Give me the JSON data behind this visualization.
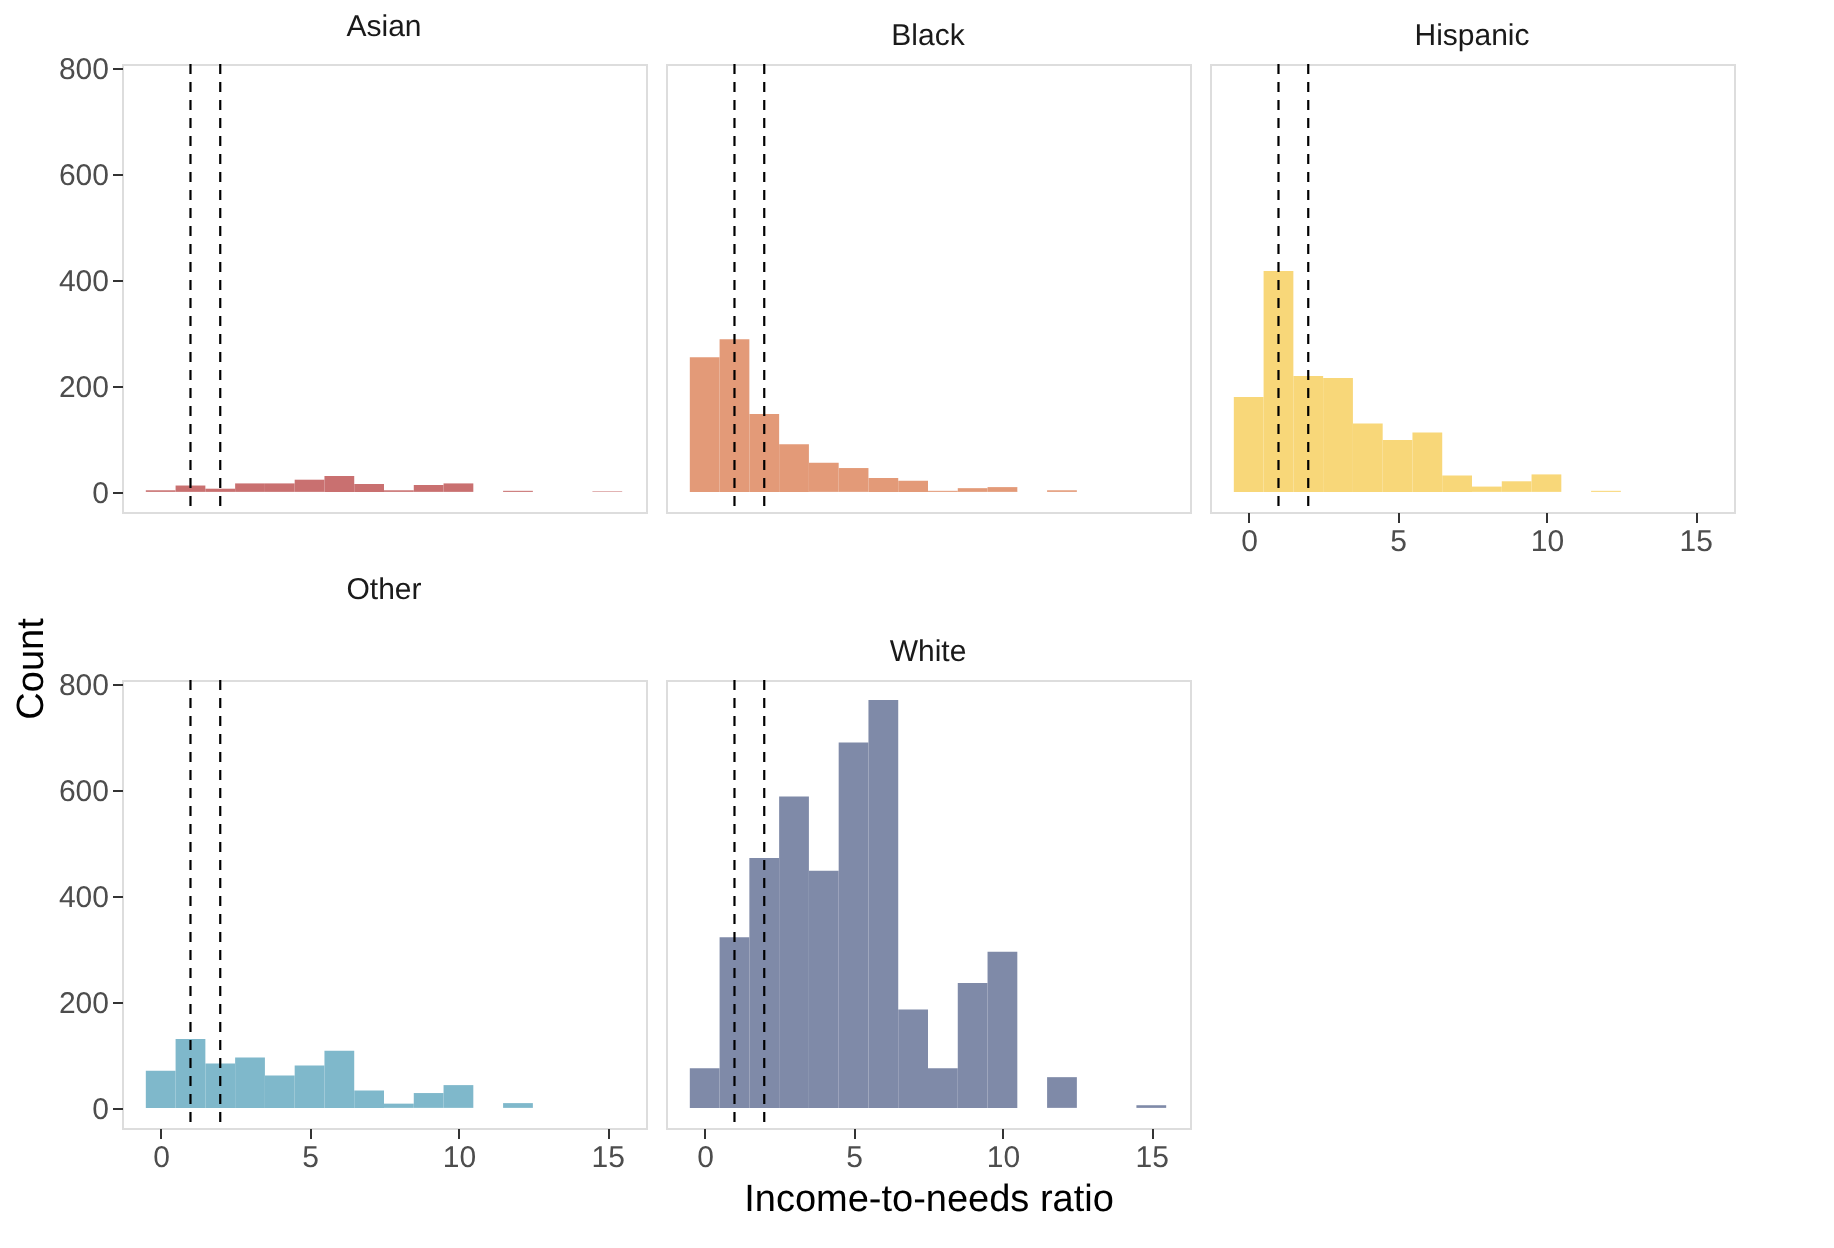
{
  "chart_data": [
    {
      "type": "histogram",
      "title": "Asian",
      "bins": [
        -0.5,
        0.5,
        1.5,
        2.5,
        3.5,
        4.5,
        5.5,
        6.5,
        7.5,
        8.5,
        9.5,
        10.5,
        11.5,
        12.5,
        13.5,
        14.5,
        15.5
      ],
      "values": [
        3,
        12,
        6,
        16,
        16,
        23,
        30,
        15,
        3,
        13,
        16,
        0,
        2,
        0,
        0,
        1
      ],
      "color": "#c97070",
      "xlim": [
        -1.3,
        16.3
      ],
      "xticks": [
        0,
        5,
        10,
        15
      ],
      "ylim": [
        -38,
        808
      ],
      "yticks": [
        0,
        200,
        400,
        600,
        800
      ],
      "ref_lines": [
        {
          "axis": "x",
          "value": 1,
          "color": "#000000",
          "line_style": "dashed"
        },
        {
          "axis": "x",
          "value": 2,
          "color": "#000000",
          "line_style": "dashed"
        }
      ],
      "tick_labels": "y",
      "grid": false
    },
    {
      "type": "histogram",
      "title": "Black",
      "bins": [
        -0.5,
        0.5,
        1.5,
        2.5,
        3.5,
        4.5,
        5.5,
        6.5,
        7.5,
        8.5,
        9.5,
        10.5,
        11.5,
        12.5,
        13.5,
        14.5,
        15.5
      ],
      "values": [
        254,
        288,
        147,
        90,
        55,
        45,
        26,
        21,
        2,
        7,
        9,
        0,
        3,
        0,
        0,
        0
      ],
      "color": "#e39a78",
      "xlim": [
        -1.3,
        16.3
      ],
      "xticks": [
        0,
        5,
        10,
        15
      ],
      "ylim": [
        -38,
        808
      ],
      "yticks": [
        0,
        200,
        400,
        600,
        800
      ],
      "ref_lines": [
        {
          "axis": "x",
          "value": 1,
          "color": "#000000",
          "line_style": "dashed"
        },
        {
          "axis": "x",
          "value": 2,
          "color": "#000000",
          "line_style": "dashed"
        }
      ],
      "tick_labels": false,
      "grid": false
    },
    {
      "type": "histogram",
      "title": "Hispanic",
      "bins": [
        -0.5,
        0.5,
        1.5,
        2.5,
        3.5,
        4.5,
        5.5,
        6.5,
        7.5,
        8.5,
        9.5,
        10.5,
        11.5,
        12.5,
        13.5,
        14.5,
        15.5
      ],
      "values": [
        179,
        417,
        219,
        215,
        129,
        98,
        112,
        31,
        10,
        20,
        33,
        0,
        2,
        0,
        0,
        0
      ],
      "color": "#f8d779",
      "xlim": [
        -1.3,
        16.3
      ],
      "xticks": [
        0,
        5,
        10,
        15
      ],
      "ylim": [
        -38,
        808
      ],
      "yticks": [
        0,
        200,
        400,
        600,
        800
      ],
      "ref_lines": [
        {
          "axis": "x",
          "value": 1,
          "color": "#000000",
          "line_style": "dashed"
        },
        {
          "axis": "x",
          "value": 2,
          "color": "#000000",
          "line_style": "dashed"
        }
      ],
      "tick_labels": "x",
      "grid": false
    },
    {
      "type": "histogram",
      "title": "Other",
      "ylabel": "Count",
      "bins": [
        -0.5,
        0.5,
        1.5,
        2.5,
        3.5,
        4.5,
        5.5,
        6.5,
        7.5,
        8.5,
        9.5,
        10.5,
        11.5,
        12.5,
        13.5,
        14.5,
        15.5
      ],
      "values": [
        70,
        130,
        84,
        95,
        61,
        80,
        108,
        33,
        8,
        28,
        43,
        0,
        9,
        0,
        0,
        0
      ],
      "color": "#7fb8cb",
      "xlim": [
        -1.3,
        16.3
      ],
      "xticks": [
        0,
        5,
        10,
        15
      ],
      "ylim": [
        -38,
        808
      ],
      "yticks": [
        0,
        200,
        400,
        600,
        800
      ],
      "ref_lines": [
        {
          "axis": "x",
          "value": 1,
          "color": "#000000",
          "line_style": "dashed"
        },
        {
          "axis": "x",
          "value": 2,
          "color": "#000000",
          "line_style": "dashed"
        }
      ],
      "grid": false
    },
    {
      "type": "histogram",
      "title": "White",
      "xlabel": "Income-to-needs ratio",
      "bins": [
        -0.5,
        0.5,
        1.5,
        2.5,
        3.5,
        4.5,
        5.5,
        6.5,
        7.5,
        8.5,
        9.5,
        10.5,
        11.5,
        12.5,
        13.5,
        14.5,
        15.5
      ],
      "values": [
        75,
        322,
        472,
        588,
        448,
        690,
        770,
        186,
        75,
        236,
        295,
        0,
        58,
        0,
        0,
        5
      ],
      "color": "#7f8aa8",
      "xlim": [
        -1.3,
        16.3
      ],
      "xticks": [
        0,
        5,
        10,
        15
      ],
      "ylim": [
        -38,
        808
      ],
      "yticks": [
        0,
        200,
        400,
        600,
        800
      ],
      "ref_lines": [
        {
          "axis": "x",
          "value": 1,
          "color": "#000000",
          "line_style": "dashed"
        },
        {
          "axis": "x",
          "value": 2,
          "color": "#000000",
          "line_style": "dashed"
        }
      ],
      "tick_labels": "x",
      "grid": false
    }
  ]
}
